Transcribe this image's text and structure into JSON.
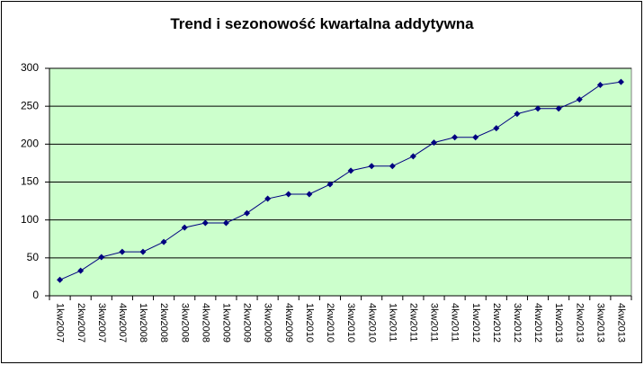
{
  "chart_data": {
    "type": "line",
    "title": "Trend i sezonowość kwartalna addytywna",
    "categories": [
      "1kw2007",
      "2kw2007",
      "3kw2007",
      "4kw2007",
      "1kw2008",
      "2kw2008",
      "3kw2008",
      "4kw2008",
      "1kw2009",
      "2kw2009",
      "3kw2009",
      "4kw2009",
      "1kw2010",
      "2kw2010",
      "3kw2010",
      "4kw2010",
      "1kw2011",
      "2kw2011",
      "3kw2011",
      "4kw2011",
      "1kw2012",
      "2kw2012",
      "3kw2012",
      "4kw2012",
      "1kw2013",
      "2kw2013",
      "3kw2013",
      "4kw2013"
    ],
    "values": [
      21,
      33,
      51,
      58,
      58,
      71,
      90,
      96,
      96,
      109,
      128,
      134,
      134,
      147,
      165,
      171,
      171,
      184,
      202,
      209,
      209,
      221,
      240,
      247,
      247,
      259,
      278,
      282
    ],
    "color": "#000080",
    "plot_background": "#ccffcc",
    "ylim": [
      0,
      300
    ],
    "yticks": [
      0,
      50,
      100,
      150,
      200,
      250,
      300
    ],
    "grid": true
  }
}
